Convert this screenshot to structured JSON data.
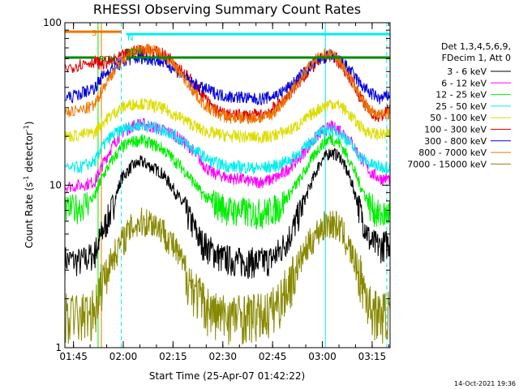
{
  "chart_data": {
    "type": "line",
    "title": "RHESSI Observing Summary Count Rates",
    "xlabel": "Start Time (25-Apr-07 01:42:22)",
    "ylabel_main": "Count Rate (s",
    "ylabel_sup1": "-1",
    "ylabel_mid": " detector",
    "ylabel_sup2": "-1",
    "ylabel_end": ")",
    "yscale": "log",
    "xlim_minutes": [
      0,
      98
    ],
    "ylim": [
      1,
      100
    ],
    "x_ticks": [
      {
        "label": "01:45",
        "minutes": 2.6
      },
      {
        "label": "02:00",
        "minutes": 17.6
      },
      {
        "label": "02:15",
        "minutes": 32.6
      },
      {
        "label": "02:30",
        "minutes": 47.6
      },
      {
        "label": "02:45",
        "minutes": 62.6
      },
      {
        "label": "03:00",
        "minutes": 77.6
      },
      {
        "label": "03:15",
        "minutes": 92.6
      }
    ],
    "y_ticks": [
      {
        "label": "1",
        "value": 1
      },
      {
        "label": "10",
        "value": 10
      },
      {
        "label": "100",
        "value": 100
      }
    ],
    "legend_header": [
      "Det 1,3,4,5,6,9,",
      "FDecim 1, Att 0"
    ],
    "series": [
      {
        "name": "3 - 6 keV",
        "color": "#000000",
        "x": [
          0,
          5,
          9,
          11,
          14,
          17,
          20,
          23,
          26,
          29,
          32,
          35,
          38,
          41,
          44,
          47,
          50,
          53,
          56,
          59,
          62,
          65,
          68,
          71,
          74,
          77,
          80,
          83,
          86,
          89,
          92,
          95,
          98
        ],
        "y": [
          3.5,
          3.4,
          3.8,
          5,
          7,
          11,
          13,
          14,
          13,
          12,
          10,
          8,
          6,
          4.5,
          4,
          3.6,
          3.5,
          3.4,
          3.4,
          3.4,
          3.5,
          4,
          5,
          7,
          10,
          14,
          16,
          15,
          11,
          7,
          4.5,
          4.2,
          4.5
        ]
      },
      {
        "name": "6 - 12 keV",
        "color": "#ff00ff",
        "x": [
          0,
          5,
          9,
          11,
          14,
          17,
          20,
          23,
          26,
          29,
          32,
          35,
          38,
          41,
          44,
          47,
          50,
          53,
          56,
          59,
          62,
          65,
          68,
          71,
          74,
          77,
          80,
          83,
          86,
          89,
          92,
          95,
          98
        ],
        "y": [
          9.8,
          10,
          10.5,
          13,
          17,
          21,
          23,
          24,
          23,
          22,
          21,
          19,
          17,
          14,
          12,
          11.5,
          11,
          11,
          10.5,
          10.5,
          10.8,
          11.5,
          13,
          15,
          18,
          21,
          23,
          22,
          19,
          15,
          12,
          11,
          11
        ]
      },
      {
        "name": "12 - 25 keV",
        "color": "#00ee00",
        "x": [
          0,
          5,
          9,
          11,
          14,
          17,
          20,
          23,
          26,
          29,
          32,
          35,
          38,
          41,
          44,
          47,
          50,
          53,
          56,
          59,
          62,
          65,
          68,
          71,
          74,
          77,
          80,
          83,
          86,
          89,
          92,
          95,
          98
        ],
        "y": [
          7,
          7.5,
          8.5,
          11,
          14,
          17,
          18.5,
          19,
          18,
          17,
          15,
          13,
          11,
          9,
          8,
          7.5,
          7,
          7,
          6.8,
          6.8,
          7,
          7.5,
          9,
          11,
          14,
          17.5,
          19.5,
          18,
          14,
          10,
          7.5,
          6.5,
          6.8
        ]
      },
      {
        "name": "25 - 50 keV",
        "color": "#00eeee",
        "x": [
          0,
          5,
          9,
          11,
          14,
          17,
          20,
          23,
          26,
          29,
          32,
          35,
          38,
          41,
          44,
          47,
          50,
          53,
          56,
          59,
          62,
          65,
          68,
          71,
          74,
          77,
          80,
          83,
          86,
          89,
          92,
          95,
          98
        ],
        "y": [
          12.5,
          13,
          14,
          17,
          20,
          22,
          23,
          23.5,
          23,
          22,
          21,
          19,
          17,
          15.5,
          14,
          13.5,
          13,
          13,
          12.8,
          12.8,
          13,
          13.5,
          14.5,
          16,
          18.5,
          21,
          22,
          21,
          18,
          15,
          13.5,
          13,
          13
        ]
      },
      {
        "name": "50 - 100 keV",
        "color": "#dddd00",
        "x": [
          0,
          5,
          9,
          11,
          14,
          17,
          20,
          23,
          26,
          29,
          32,
          35,
          38,
          41,
          44,
          47,
          50,
          53,
          56,
          59,
          62,
          65,
          68,
          71,
          74,
          77,
          80,
          83,
          86,
          89,
          92,
          95,
          98
        ],
        "y": [
          20,
          20.5,
          21,
          24,
          27,
          30,
          31.5,
          32,
          31,
          30,
          28,
          26,
          24,
          22,
          21,
          20.5,
          20,
          20,
          19.8,
          19.8,
          20,
          21,
          22,
          24,
          27,
          30,
          32,
          31,
          27,
          23,
          21,
          20.5,
          20.5
        ]
      },
      {
        "name": "100 - 300 keV",
        "color": "#dd0000",
        "x": [
          0,
          5,
          9,
          11,
          14,
          17,
          20,
          23,
          26,
          29,
          32,
          35,
          38,
          41,
          44,
          47,
          50,
          53,
          56,
          59,
          62,
          65,
          68,
          71,
          74,
          77,
          80,
          83,
          86,
          89,
          92,
          95,
          98
        ],
        "y": [
          52,
          56,
          58,
          56,
          58,
          62,
          66,
          68,
          67,
          65,
          60,
          52,
          44,
          37,
          31,
          28,
          27,
          27,
          27,
          27,
          29,
          32,
          37,
          44,
          52,
          60,
          63,
          56,
          46,
          35,
          28,
          26,
          30
        ]
      },
      {
        "name": "300 - 800 keV",
        "color": "#0000dd",
        "x": [
          0,
          5,
          9,
          11,
          14,
          17,
          20,
          23,
          26,
          29,
          32,
          35,
          38,
          41,
          44,
          47,
          50,
          53,
          56,
          59,
          62,
          65,
          68,
          71,
          74,
          77,
          80,
          83,
          86,
          89,
          92,
          95,
          98
        ],
        "y": [
          34,
          37,
          40,
          46,
          52,
          57,
          60,
          61,
          60,
          58,
          54,
          48,
          43,
          40,
          38,
          36,
          35,
          35,
          34,
          34,
          35,
          37,
          41,
          47,
          54,
          60,
          63,
          59,
          51,
          42,
          37,
          34,
          36
        ]
      },
      {
        "name": "800 - 7000 keV",
        "color": "#ee7700",
        "x": [
          0,
          5,
          9,
          11,
          14,
          17,
          20,
          23,
          26,
          29,
          32,
          35,
          38,
          41,
          44,
          47,
          50,
          53,
          56,
          59,
          62,
          65,
          68,
          71,
          74,
          77,
          80,
          83,
          86,
          89,
          92,
          95,
          98
        ],
        "y": [
          28,
          29,
          31,
          38,
          48,
          58,
          65,
          70,
          68,
          65,
          58,
          48,
          40,
          33,
          29,
          27,
          26,
          26,
          26,
          26,
          27,
          31,
          37,
          45,
          55,
          63,
          65,
          58,
          46,
          35,
          29,
          27,
          28
        ]
      },
      {
        "name": "7000 - 15000 keV",
        "color": "#888800",
        "x": [
          0,
          5,
          9,
          11,
          14,
          17,
          20,
          23,
          26,
          29,
          32,
          35,
          38,
          41,
          44,
          47,
          50,
          53,
          56,
          59,
          62,
          65,
          68,
          71,
          74,
          77,
          80,
          83,
          86,
          89,
          92,
          95,
          98
        ],
        "y": [
          1.6,
          1.6,
          1.7,
          2.5,
          3.5,
          4.5,
          5.5,
          6,
          6,
          5.5,
          4.5,
          3.5,
          2.5,
          2,
          1.7,
          1.6,
          1.6,
          1.6,
          1.6,
          1.6,
          1.7,
          2,
          2.6,
          3.5,
          4.5,
          5.5,
          6,
          5.5,
          4,
          2.8,
          1.8,
          1.6,
          1.7
        ]
      }
    ],
    "annotations": {
      "flags": [
        {
          "label": "S",
          "color": "#ee7700",
          "x_start": 0,
          "x_end": 17,
          "y": 88
        },
        {
          "label": "N",
          "color": "#00eeee",
          "x_start": 18.5,
          "x_end": 98,
          "y": 85
        },
        {
          "label": "RD4",
          "color": "#008800",
          "x_start": 0,
          "x_end": 9,
          "y": 61
        },
        {
          "label": "RD6",
          "color": "#008800",
          "x_start": 18.5,
          "x_end": 98,
          "y": 61
        }
      ],
      "vlines_solid": [
        {
          "minutes": 0,
          "color": "#00eeee"
        },
        {
          "minutes": 10,
          "color": "#00ee00"
        },
        {
          "minutes": 11,
          "color": "#ee7700"
        },
        {
          "minutes": 78.5,
          "color": "#00eeee"
        }
      ],
      "vlines_dashed": [
        {
          "minutes": 17,
          "color": "#00eeee"
        },
        {
          "minutes": 97,
          "color": "#00eeee"
        }
      ]
    }
  },
  "footer_timestamp": "14-Oct-2021 19:36"
}
